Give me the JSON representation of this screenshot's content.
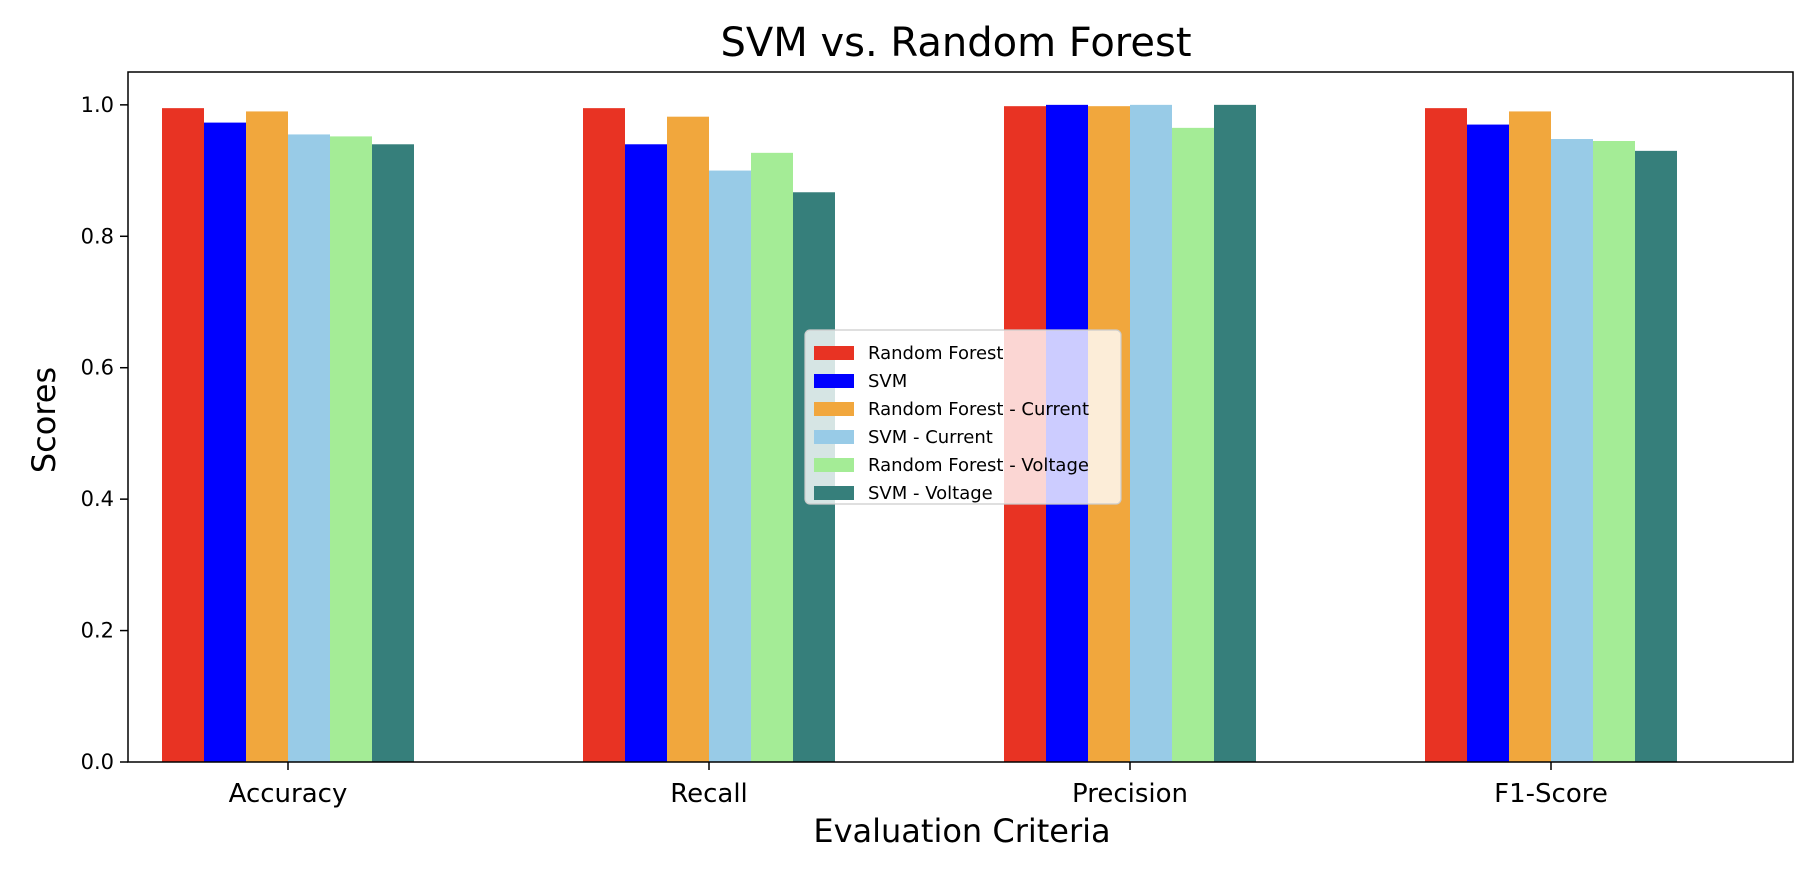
{
  "chart_data": {
    "type": "bar",
    "title": "SVM vs. Random Forest",
    "xlabel": "Evaluation Criteria",
    "ylabel": "Scores",
    "categories": [
      "Accuracy",
      "Recall",
      "Precision",
      "F1-Score"
    ],
    "ylim": [
      0,
      1.05
    ],
    "yticks": [
      "0.0",
      "0.2",
      "0.4",
      "0.6",
      "0.8",
      "1.0"
    ],
    "grid": false,
    "legend_position": "center",
    "series": [
      {
        "name": "Random Forest",
        "color": "#e83323",
        "values": [
          0.995,
          0.995,
          0.998,
          0.995
        ]
      },
      {
        "name": "SVM",
        "color": "#0000ff",
        "values": [
          0.973,
          0.94,
          1.0,
          0.97
        ]
      },
      {
        "name": "Random Forest - Current",
        "color": "#f1a73d",
        "values": [
          0.99,
          0.982,
          0.998,
          0.99
        ]
      },
      {
        "name": "SVM - Current",
        "color": "#98cbe7",
        "values": [
          0.955,
          0.9,
          1.0,
          0.948
        ]
      },
      {
        "name": "Random Forest - Voltage",
        "color": "#a4ec96",
        "values": [
          0.952,
          0.927,
          0.965,
          0.945
        ]
      },
      {
        "name": "SVM - Voltage",
        "color": "#367f7b",
        "values": [
          0.94,
          0.867,
          1.0,
          0.93
        ]
      }
    ]
  }
}
